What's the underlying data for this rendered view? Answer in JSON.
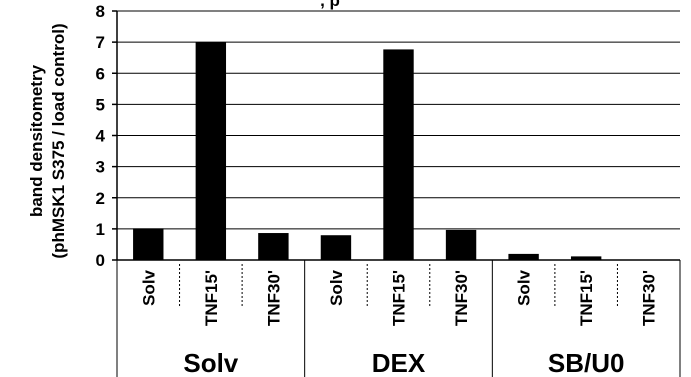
{
  "chart_data": {
    "type": "bar",
    "title": ", p",
    "ylabel_lines": [
      "band densitometry",
      "(phMSK1 S375 / load control)"
    ],
    "ylim": [
      0,
      8
    ],
    "yticks": [
      0,
      1,
      2,
      3,
      4,
      5,
      6,
      7,
      8
    ],
    "grid": true,
    "categories": [
      "Solv",
      "TNF15'",
      "TNF30'",
      "Solv",
      "TNF15'",
      "TNF30'",
      "Solv",
      "TNF15'",
      "TNF30'"
    ],
    "groups": [
      {
        "label": "Solv",
        "size": 3
      },
      {
        "label": "DEX",
        "size": 3
      },
      {
        "label": "SB/U0",
        "size": 3
      }
    ],
    "values": [
      1.0,
      6.98,
      0.85,
      0.78,
      6.75,
      0.95,
      0.18,
      0.1,
      0.0
    ],
    "bar_color": "#000000"
  }
}
